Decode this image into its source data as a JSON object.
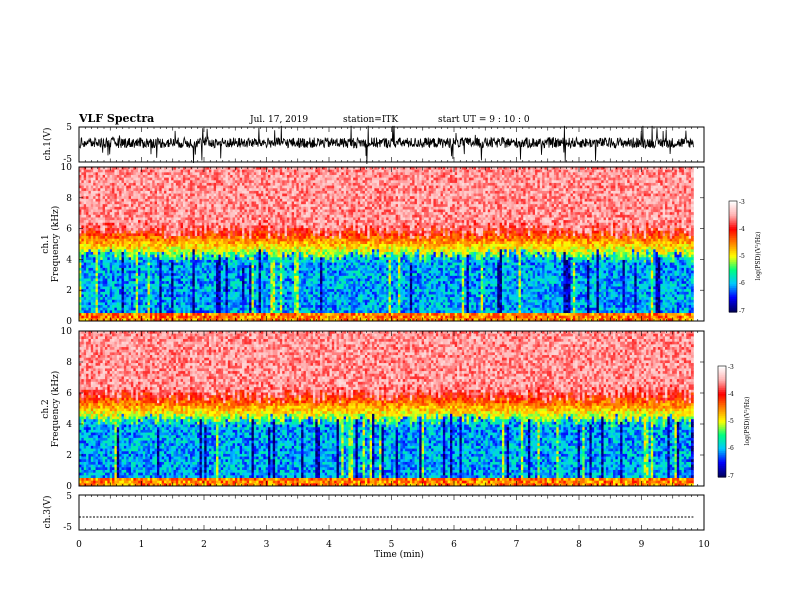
{
  "header": {
    "title": "VLF Spectra",
    "date": "Jul. 17, 2019",
    "station": "station=ITK",
    "start": "start UT =  9 : 10 : 0"
  },
  "colors": {
    "waveform": "#000000",
    "spectrogram_scale": [
      "#000066",
      "#0000ff",
      "#00c8ff",
      "#00ff80",
      "#ffff00",
      "#ff8000",
      "#ff0000",
      "#ffb0b0",
      "#ffffff"
    ]
  },
  "chart_data": [
    {
      "type": "line",
      "id": "ch1-waveform",
      "ylabel": "ch.1(V)",
      "ylim": [
        -5,
        5
      ],
      "yticks": [
        "5",
        "-5"
      ],
      "description_values": {
        "baseline_v": 0.5,
        "typical_noise_amplitude_v": 1.5
      },
      "x_range_min": [
        0,
        9.83
      ]
    },
    {
      "type": "heatmap",
      "id": "ch1-spectrogram",
      "ylabel_line1": "ch.1",
      "ylabel_line2": "Frequency (kHz)",
      "ylim": [
        0,
        10
      ],
      "yticks": [
        "0",
        "2",
        "4",
        "6",
        "8",
        "10"
      ],
      "x_range_min": [
        0,
        9.83
      ],
      "colorbar": {
        "label": "log(PSD)(V²/Hz)",
        "range": [
          -7,
          -3
        ],
        "ticks": [
          "-3",
          "-4",
          "-5",
          "-6",
          "-7"
        ]
      },
      "band_structure_khz": {
        "low_noise_band": [
          0.5,
          4.2
        ],
        "transition": [
          4.2,
          6
        ],
        "high_band": [
          6,
          10
        ]
      }
    },
    {
      "type": "heatmap",
      "id": "ch2-spectrogram",
      "ylabel_line1": "ch.2",
      "ylabel_line2": "Frequency (kHz)",
      "ylim": [
        0,
        10
      ],
      "yticks": [
        "0",
        "2",
        "4",
        "6",
        "8",
        "10"
      ],
      "x_range_min": [
        0,
        9.83
      ],
      "colorbar": {
        "label": "log(PSD)(V²/Hz)",
        "range": [
          -7,
          -3
        ],
        "ticks": [
          "-3",
          "-4",
          "-5",
          "-6",
          "-7"
        ]
      },
      "band_structure_khz": {
        "low_noise_band": [
          0.5,
          4.2
        ],
        "transition": [
          4.2,
          6
        ],
        "high_band": [
          6,
          10
        ]
      }
    },
    {
      "type": "line",
      "id": "ch3-waveform",
      "ylabel": "ch.3(V)",
      "ylim": [
        -5,
        5
      ],
      "yticks": [
        "5",
        "-5"
      ],
      "description_values": {
        "baseline_v": -1.3
      },
      "x_range_min": [
        0,
        9.83
      ]
    }
  ],
  "xaxis": {
    "label": "Time (min)",
    "xlim": [
      0,
      10
    ],
    "ticks": [
      "0",
      "1",
      "2",
      "3",
      "4",
      "5",
      "6",
      "7",
      "8",
      "9",
      "10"
    ]
  }
}
